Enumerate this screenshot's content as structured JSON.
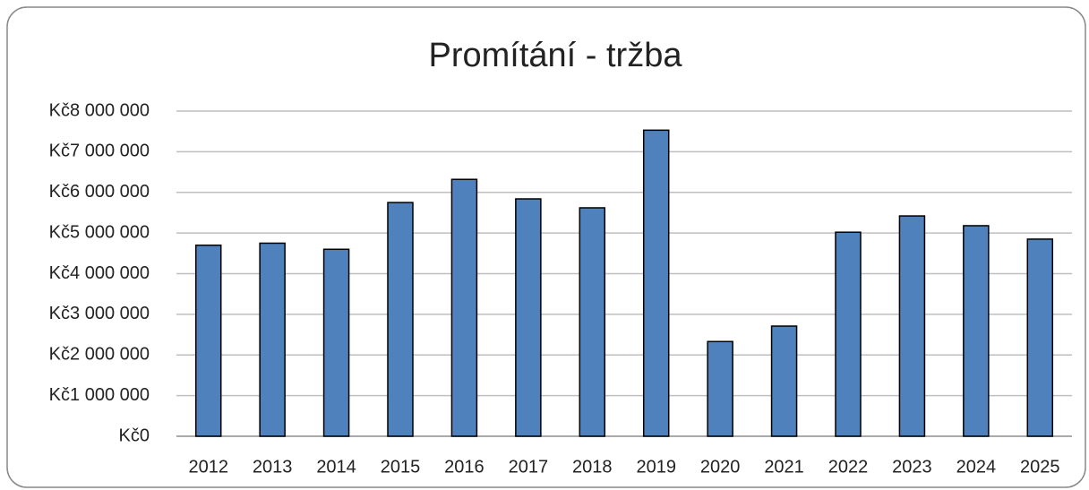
{
  "chart_data": {
    "type": "bar",
    "title": "Promítání - tržba",
    "categories": [
      "2012",
      "2013",
      "2014",
      "2015",
      "2016",
      "2017",
      "2018",
      "2019",
      "2020",
      "2021",
      "2022",
      "2023",
      "2024",
      "2025"
    ],
    "values": [
      4700000,
      4750000,
      4600000,
      5750000,
      6320000,
      5840000,
      5620000,
      7530000,
      2330000,
      2710000,
      5020000,
      5420000,
      5180000,
      4850000
    ],
    "color": "#4f81bd",
    "ylim": [
      0,
      8000000
    ],
    "yticks": [
      {
        "value": 0,
        "label": "Kč0"
      },
      {
        "value": 1000000,
        "label": "Kč1 000 000"
      },
      {
        "value": 2000000,
        "label": "Kč2 000 000"
      },
      {
        "value": 3000000,
        "label": "Kč3 000 000"
      },
      {
        "value": 4000000,
        "label": "Kč4 000 000"
      },
      {
        "value": 5000000,
        "label": "Kč5 000 000"
      },
      {
        "value": 6000000,
        "label": "Kč6 000 000"
      },
      {
        "value": 7000000,
        "label": "Kč7 000 000"
      },
      {
        "value": 8000000,
        "label": "Kč8 000 000"
      }
    ],
    "grid": true
  }
}
